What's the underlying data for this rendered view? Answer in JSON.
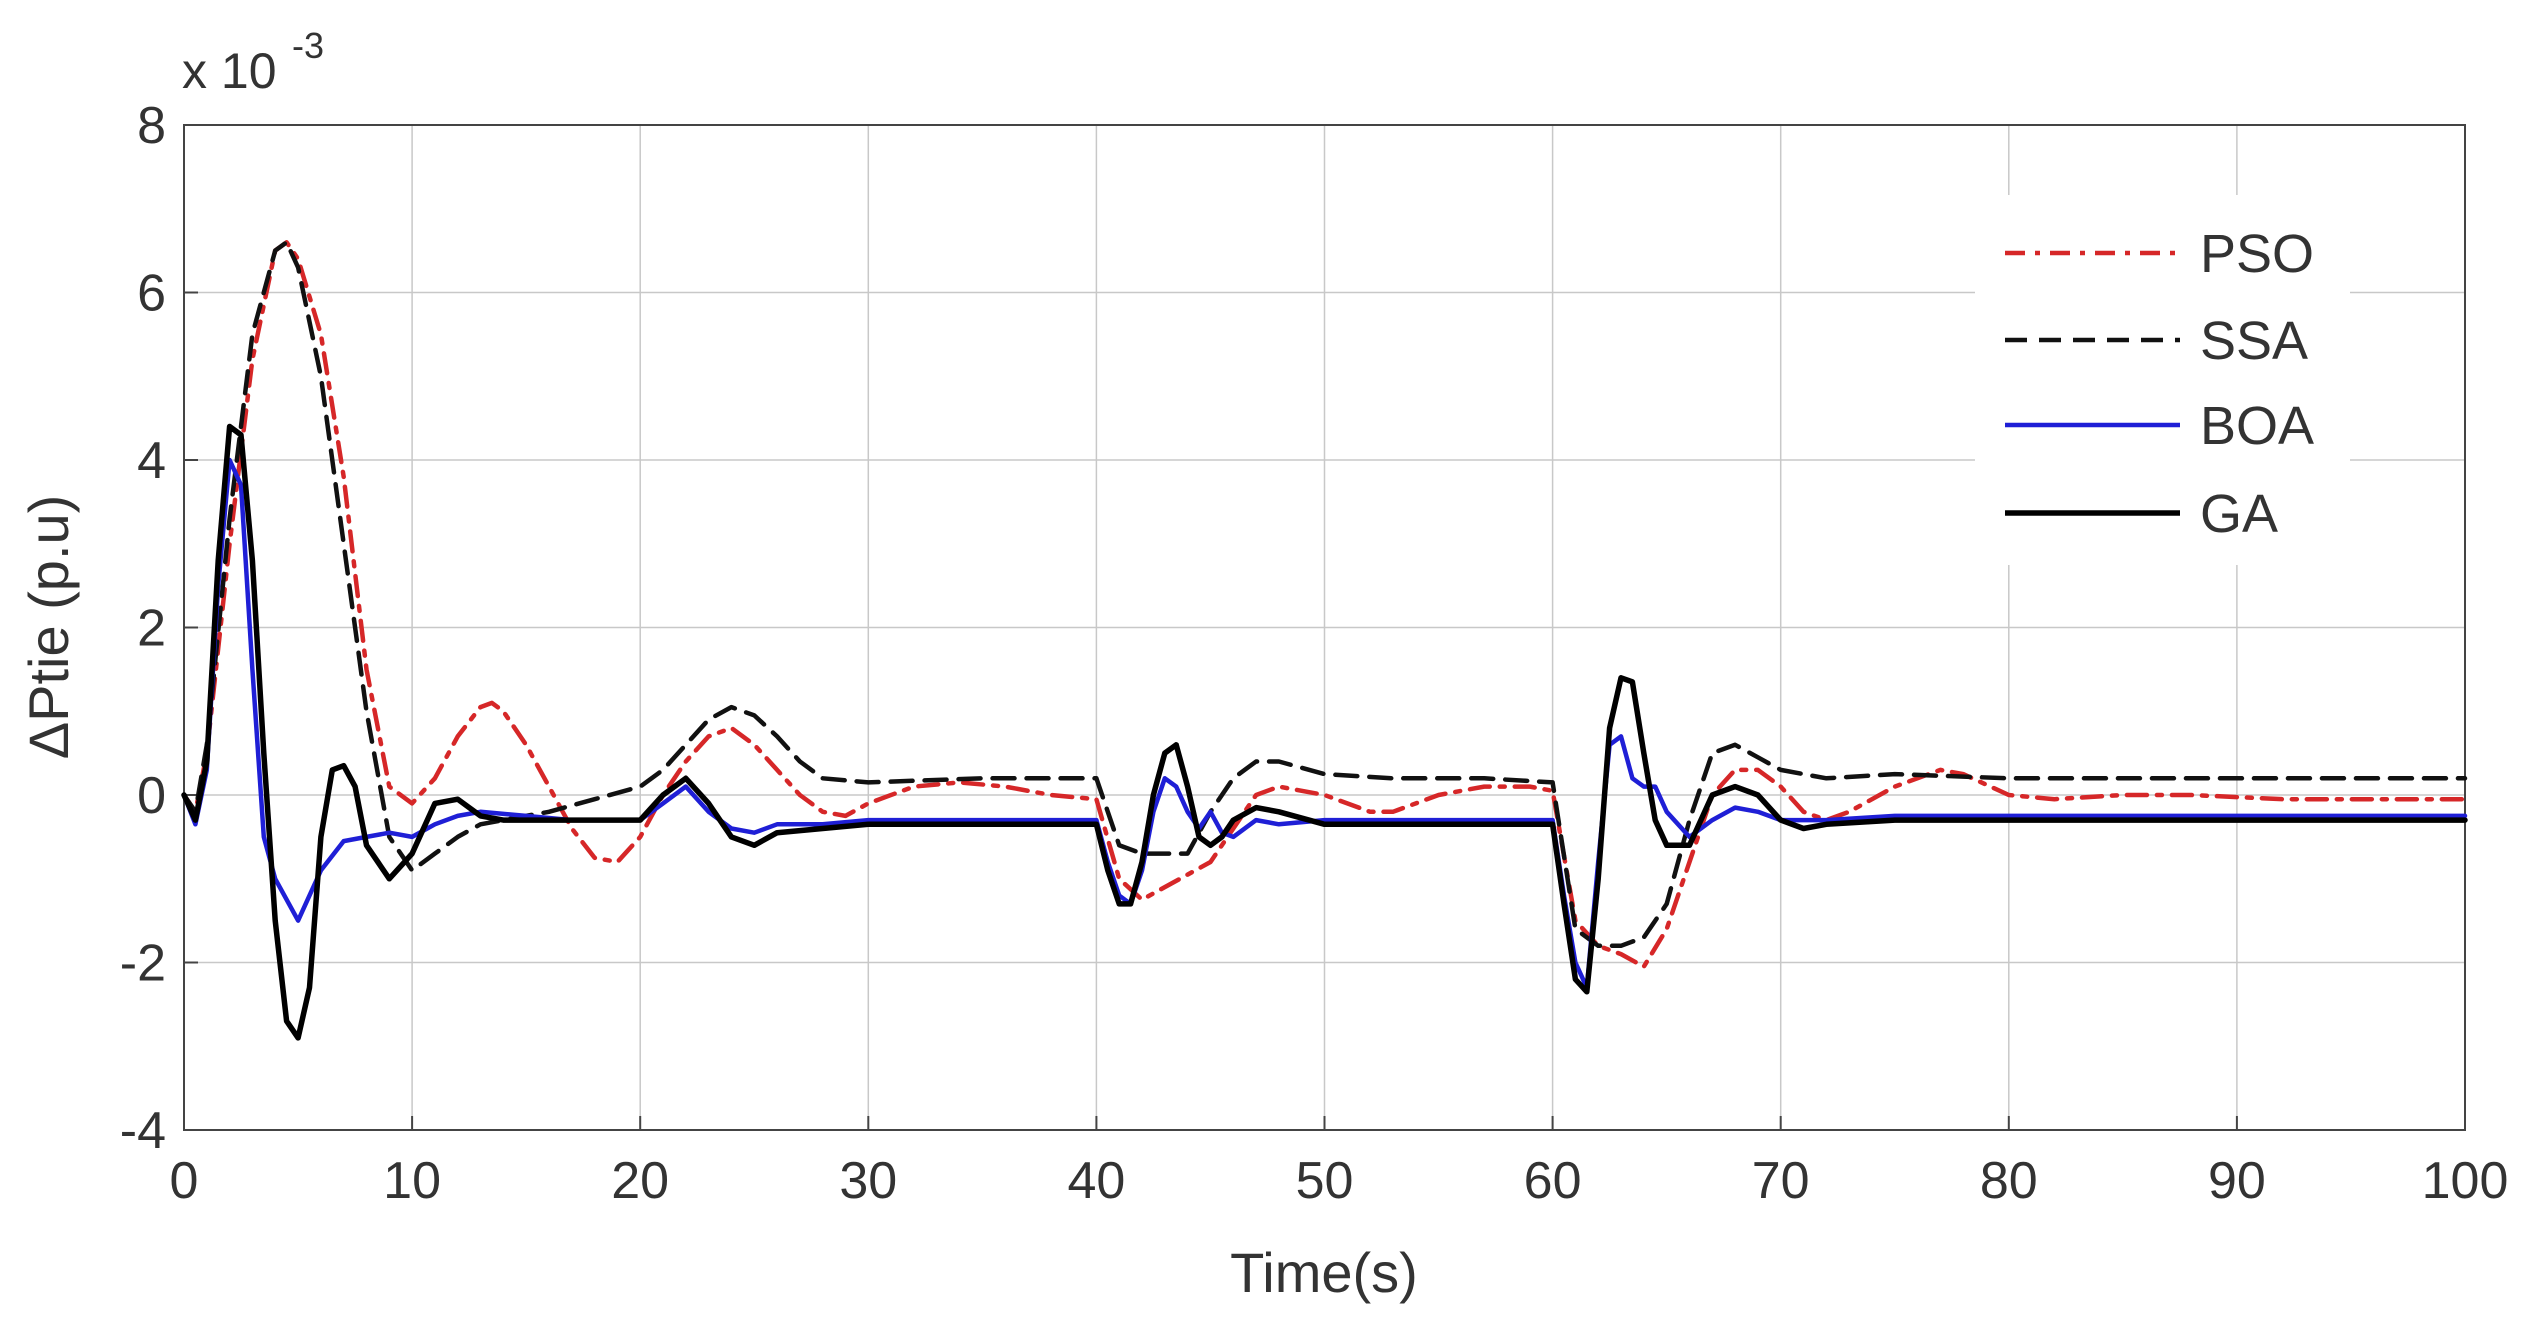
{
  "chart_data": {
    "type": "line",
    "title": "",
    "xlabel": "Time(s)",
    "ylabel": "ΔPtie (p.u)",
    "y_multiplier_base": "x 10",
    "y_multiplier_exp": "-3",
    "xlim": [
      0,
      100
    ],
    "ylim": [
      -4,
      8
    ],
    "xticks": [
      "0",
      "10",
      "20",
      "30",
      "40",
      "50",
      "60",
      "70",
      "80",
      "90",
      "100"
    ],
    "yticks": [
      "-4",
      "-2",
      "0",
      "2",
      "4",
      "6",
      "8"
    ],
    "grid": true,
    "legend_position": "top-right",
    "series": [
      {
        "name": "PSO",
        "color": "#d62728",
        "style": "dashdot",
        "width": 4.5,
        "points": [
          [
            0,
            0
          ],
          [
            0.5,
            -0.2
          ],
          [
            1,
            0.5
          ],
          [
            2,
            3.0
          ],
          [
            3,
            5.2
          ],
          [
            4,
            6.5
          ],
          [
            4.5,
            6.6
          ],
          [
            5,
            6.4
          ],
          [
            6,
            5.5
          ],
          [
            7,
            3.8
          ],
          [
            8,
            1.5
          ],
          [
            9,
            0.1
          ],
          [
            10,
            -0.1
          ],
          [
            11,
            0.2
          ],
          [
            12,
            0.7
          ],
          [
            13,
            1.05
          ],
          [
            13.5,
            1.1
          ],
          [
            14,
            1.0
          ],
          [
            15,
            0.6
          ],
          [
            16,
            0.1
          ],
          [
            17,
            -0.4
          ],
          [
            18,
            -0.75
          ],
          [
            19,
            -0.8
          ],
          [
            20,
            -0.5
          ],
          [
            21,
            0.0
          ],
          [
            22,
            0.4
          ],
          [
            23,
            0.7
          ],
          [
            24,
            0.8
          ],
          [
            25,
            0.6
          ],
          [
            26,
            0.3
          ],
          [
            27,
            0.0
          ],
          [
            28,
            -0.2
          ],
          [
            29,
            -0.25
          ],
          [
            30,
            -0.1
          ],
          [
            32,
            0.1
          ],
          [
            34,
            0.15
          ],
          [
            36,
            0.1
          ],
          [
            38,
            0.0
          ],
          [
            40,
            -0.05
          ],
          [
            41,
            -1.0
          ],
          [
            42,
            -1.25
          ],
          [
            43,
            -1.1
          ],
          [
            44,
            -0.95
          ],
          [
            45,
            -0.8
          ],
          [
            46,
            -0.4
          ],
          [
            47,
            0.0
          ],
          [
            48,
            0.1
          ],
          [
            50,
            0.0
          ],
          [
            52,
            -0.2
          ],
          [
            53,
            -0.2
          ],
          [
            55,
            0.0
          ],
          [
            57,
            0.1
          ],
          [
            59,
            0.1
          ],
          [
            60,
            0.05
          ],
          [
            61,
            -1.5
          ],
          [
            62,
            -1.8
          ],
          [
            63,
            -1.9
          ],
          [
            64,
            -2.05
          ],
          [
            65,
            -1.6
          ],
          [
            66,
            -0.8
          ],
          [
            67,
            0.0
          ],
          [
            68,
            0.3
          ],
          [
            69,
            0.3
          ],
          [
            70,
            0.1
          ],
          [
            71,
            -0.2
          ],
          [
            72,
            -0.3
          ],
          [
            73,
            -0.2
          ],
          [
            75,
            0.1
          ],
          [
            77,
            0.3
          ],
          [
            78,
            0.25
          ],
          [
            80,
            0.0
          ],
          [
            82,
            -0.05
          ],
          [
            85,
            0.0
          ],
          [
            88,
            0.0
          ],
          [
            92,
            -0.05
          ],
          [
            96,
            -0.05
          ],
          [
            100,
            -0.05
          ]
        ]
      },
      {
        "name": "SSA",
        "color": "#111111",
        "style": "dashed",
        "width": 4.5,
        "points": [
          [
            0,
            0
          ],
          [
            0.5,
            -0.2
          ],
          [
            1,
            0.6
          ],
          [
            2,
            3.3
          ],
          [
            3,
            5.5
          ],
          [
            4,
            6.5
          ],
          [
            4.5,
            6.6
          ],
          [
            5,
            6.3
          ],
          [
            6,
            5.0
          ],
          [
            7,
            3.0
          ],
          [
            8,
            1.0
          ],
          [
            9,
            -0.5
          ],
          [
            10,
            -0.9
          ],
          [
            11,
            -0.7
          ],
          [
            12,
            -0.5
          ],
          [
            13,
            -0.35
          ],
          [
            14,
            -0.3
          ],
          [
            15,
            -0.25
          ],
          [
            16,
            -0.2
          ],
          [
            18,
            -0.05
          ],
          [
            20,
            0.1
          ],
          [
            21,
            0.3
          ],
          [
            22,
            0.6
          ],
          [
            23,
            0.9
          ],
          [
            24,
            1.05
          ],
          [
            25,
            0.95
          ],
          [
            26,
            0.7
          ],
          [
            27,
            0.4
          ],
          [
            28,
            0.2
          ],
          [
            30,
            0.15
          ],
          [
            35,
            0.2
          ],
          [
            40,
            0.2
          ],
          [
            41,
            -0.6
          ],
          [
            42,
            -0.7
          ],
          [
            44,
            -0.7
          ],
          [
            45,
            -0.2
          ],
          [
            46,
            0.2
          ],
          [
            47,
            0.4
          ],
          [
            48,
            0.4
          ],
          [
            50,
            0.25
          ],
          [
            53,
            0.2
          ],
          [
            57,
            0.2
          ],
          [
            60,
            0.15
          ],
          [
            61,
            -1.6
          ],
          [
            62,
            -1.8
          ],
          [
            63,
            -1.8
          ],
          [
            64,
            -1.7
          ],
          [
            65,
            -1.3
          ],
          [
            66,
            -0.3
          ],
          [
            67,
            0.5
          ],
          [
            68,
            0.6
          ],
          [
            69,
            0.45
          ],
          [
            70,
            0.3
          ],
          [
            72,
            0.2
          ],
          [
            75,
            0.25
          ],
          [
            80,
            0.2
          ],
          [
            90,
            0.2
          ],
          [
            100,
            0.2
          ]
        ]
      },
      {
        "name": "BOA",
        "color": "#1f1fd6",
        "style": "solid",
        "width": 4.5,
        "points": [
          [
            0,
            0
          ],
          [
            0.5,
            -0.35
          ],
          [
            1,
            0.3
          ],
          [
            1.5,
            2.5
          ],
          [
            2,
            4.0
          ],
          [
            2.5,
            3.7
          ],
          [
            3,
            1.5
          ],
          [
            3.5,
            -0.5
          ],
          [
            4,
            -1.0
          ],
          [
            5,
            -1.5
          ],
          [
            6,
            -0.9
          ],
          [
            7,
            -0.55
          ],
          [
            8,
            -0.5
          ],
          [
            9,
            -0.45
          ],
          [
            10,
            -0.5
          ],
          [
            11,
            -0.35
          ],
          [
            12,
            -0.25
          ],
          [
            13,
            -0.2
          ],
          [
            15,
            -0.25
          ],
          [
            17,
            -0.3
          ],
          [
            20,
            -0.3
          ],
          [
            21,
            -0.1
          ],
          [
            22,
            0.1
          ],
          [
            23,
            -0.2
          ],
          [
            24,
            -0.4
          ],
          [
            25,
            -0.45
          ],
          [
            26,
            -0.35
          ],
          [
            28,
            -0.35
          ],
          [
            30,
            -0.3
          ],
          [
            35,
            -0.3
          ],
          [
            40,
            -0.3
          ],
          [
            40.5,
            -0.8
          ],
          [
            41,
            -1.2
          ],
          [
            41.5,
            -1.3
          ],
          [
            42,
            -0.9
          ],
          [
            42.5,
            -0.2
          ],
          [
            43,
            0.2
          ],
          [
            43.5,
            0.1
          ],
          [
            44,
            -0.2
          ],
          [
            44.5,
            -0.4
          ],
          [
            45,
            -0.2
          ],
          [
            45.5,
            -0.45
          ],
          [
            46,
            -0.5
          ],
          [
            47,
            -0.3
          ],
          [
            48,
            -0.35
          ],
          [
            50,
            -0.3
          ],
          [
            55,
            -0.3
          ],
          [
            60,
            -0.3
          ],
          [
            60.5,
            -1.2
          ],
          [
            61,
            -2.0
          ],
          [
            61.5,
            -2.3
          ],
          [
            62,
            -0.8
          ],
          [
            62.5,
            0.6
          ],
          [
            63,
            0.7
          ],
          [
            63.5,
            0.2
          ],
          [
            64,
            0.1
          ],
          [
            64.5,
            0.1
          ],
          [
            65,
            -0.2
          ],
          [
            66,
            -0.5
          ],
          [
            67,
            -0.3
          ],
          [
            68,
            -0.15
          ],
          [
            69,
            -0.2
          ],
          [
            70,
            -0.3
          ],
          [
            72,
            -0.3
          ],
          [
            75,
            -0.25
          ],
          [
            80,
            -0.25
          ],
          [
            90,
            -0.25
          ],
          [
            100,
            -0.25
          ]
        ]
      },
      {
        "name": "GA",
        "color": "#000000",
        "style": "solid",
        "width": 5.5,
        "points": [
          [
            0,
            0
          ],
          [
            0.5,
            -0.3
          ],
          [
            1,
            0.4
          ],
          [
            1.5,
            2.8
          ],
          [
            2,
            4.4
          ],
          [
            2.5,
            4.3
          ],
          [
            3,
            2.8
          ],
          [
            3.5,
            0.5
          ],
          [
            4,
            -1.5
          ],
          [
            4.5,
            -2.7
          ],
          [
            5,
            -2.9
          ],
          [
            5.5,
            -2.3
          ],
          [
            6,
            -0.5
          ],
          [
            6.5,
            0.3
          ],
          [
            7,
            0.35
          ],
          [
            7.5,
            0.1
          ],
          [
            8,
            -0.6
          ],
          [
            9,
            -1.0
          ],
          [
            10,
            -0.7
          ],
          [
            11,
            -0.1
          ],
          [
            12,
            -0.05
          ],
          [
            13,
            -0.25
          ],
          [
            14,
            -0.3
          ],
          [
            15,
            -0.3
          ],
          [
            17,
            -0.3
          ],
          [
            20,
            -0.3
          ],
          [
            21,
            0.0
          ],
          [
            22,
            0.2
          ],
          [
            23,
            -0.1
          ],
          [
            24,
            -0.5
          ],
          [
            25,
            -0.6
          ],
          [
            26,
            -0.45
          ],
          [
            28,
            -0.4
          ],
          [
            30,
            -0.35
          ],
          [
            35,
            -0.35
          ],
          [
            40,
            -0.35
          ],
          [
            40.5,
            -0.9
          ],
          [
            41,
            -1.3
          ],
          [
            41.5,
            -1.3
          ],
          [
            42,
            -0.8
          ],
          [
            42.5,
            0.0
          ],
          [
            43,
            0.5
          ],
          [
            43.5,
            0.6
          ],
          [
            44,
            0.1
          ],
          [
            44.5,
            -0.5
          ],
          [
            45,
            -0.6
          ],
          [
            45.5,
            -0.5
          ],
          [
            46,
            -0.3
          ],
          [
            47,
            -0.15
          ],
          [
            48,
            -0.2
          ],
          [
            50,
            -0.35
          ],
          [
            55,
            -0.35
          ],
          [
            60,
            -0.35
          ],
          [
            60.5,
            -1.3
          ],
          [
            61,
            -2.2
          ],
          [
            61.5,
            -2.35
          ],
          [
            62,
            -1.0
          ],
          [
            62.5,
            0.8
          ],
          [
            63,
            1.4
          ],
          [
            63.5,
            1.35
          ],
          [
            64,
            0.5
          ],
          [
            64.5,
            -0.3
          ],
          [
            65,
            -0.6
          ],
          [
            66,
            -0.6
          ],
          [
            67,
            0.0
          ],
          [
            68,
            0.1
          ],
          [
            69,
            0.0
          ],
          [
            70,
            -0.3
          ],
          [
            71,
            -0.4
          ],
          [
            72,
            -0.35
          ],
          [
            75,
            -0.3
          ],
          [
            80,
            -0.3
          ],
          [
            90,
            -0.3
          ],
          [
            100,
            -0.3
          ]
        ]
      }
    ]
  }
}
